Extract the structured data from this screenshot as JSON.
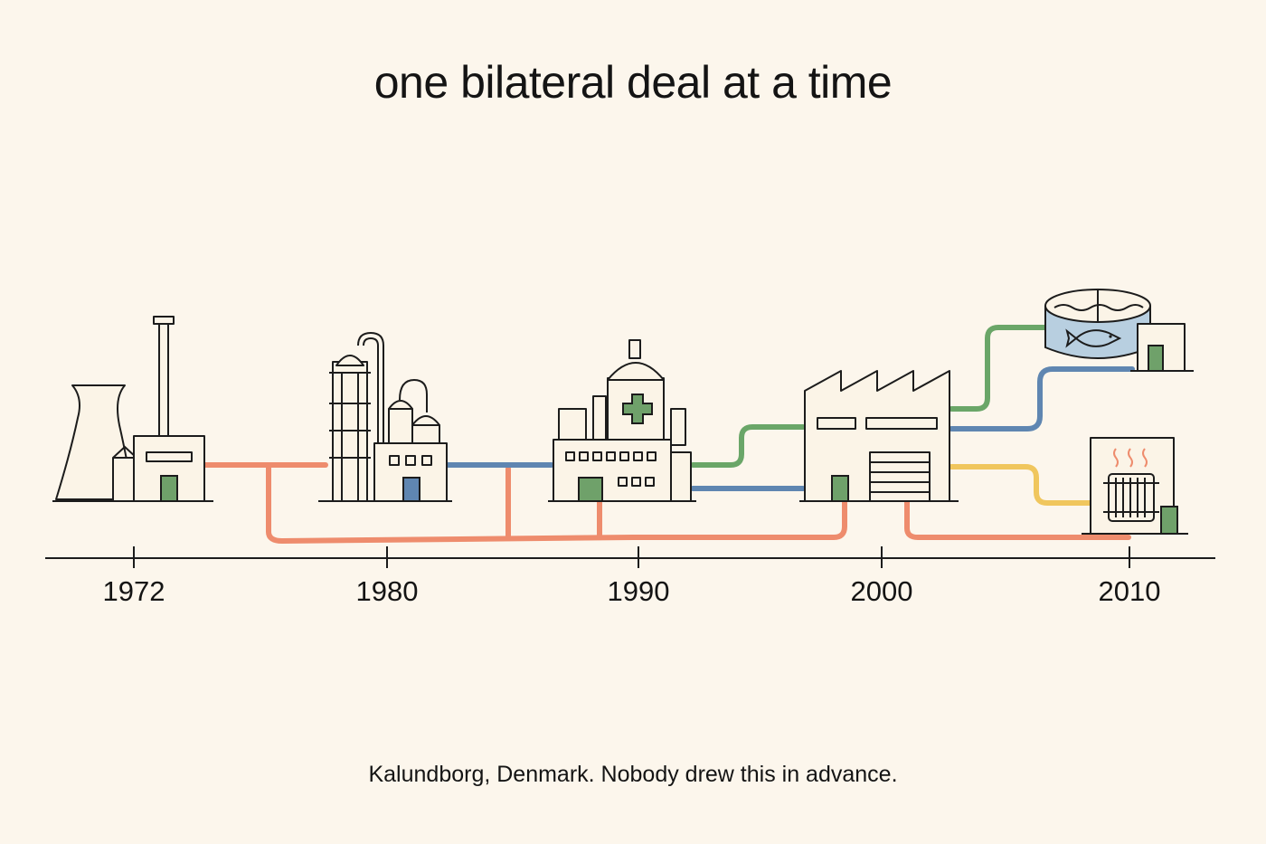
{
  "title": "one bilateral deal at a time",
  "caption": "Kalundborg, Denmark. Nobody drew this in advance.",
  "timeline": {
    "ticks": [
      {
        "label": "1972"
      },
      {
        "label": "1980"
      },
      {
        "label": "1990"
      },
      {
        "label": "2000"
      },
      {
        "label": "2010"
      }
    ]
  },
  "colors": {
    "orange_pipe": "#ee8c6d",
    "blue_pipe": "#5f86b1",
    "green_pipe": "#6aa668",
    "yellow_pipe": "#f0c65d",
    "door_green": "#6fa16a",
    "door_blue": "#5f86b1",
    "tank_water": "#b8cfe0"
  },
  "icons": [
    "power-plant-icon",
    "refinery-icon",
    "pharmaceutical-plant-icon",
    "factory-icon",
    "fish-farm-icon",
    "district-heating-icon"
  ]
}
